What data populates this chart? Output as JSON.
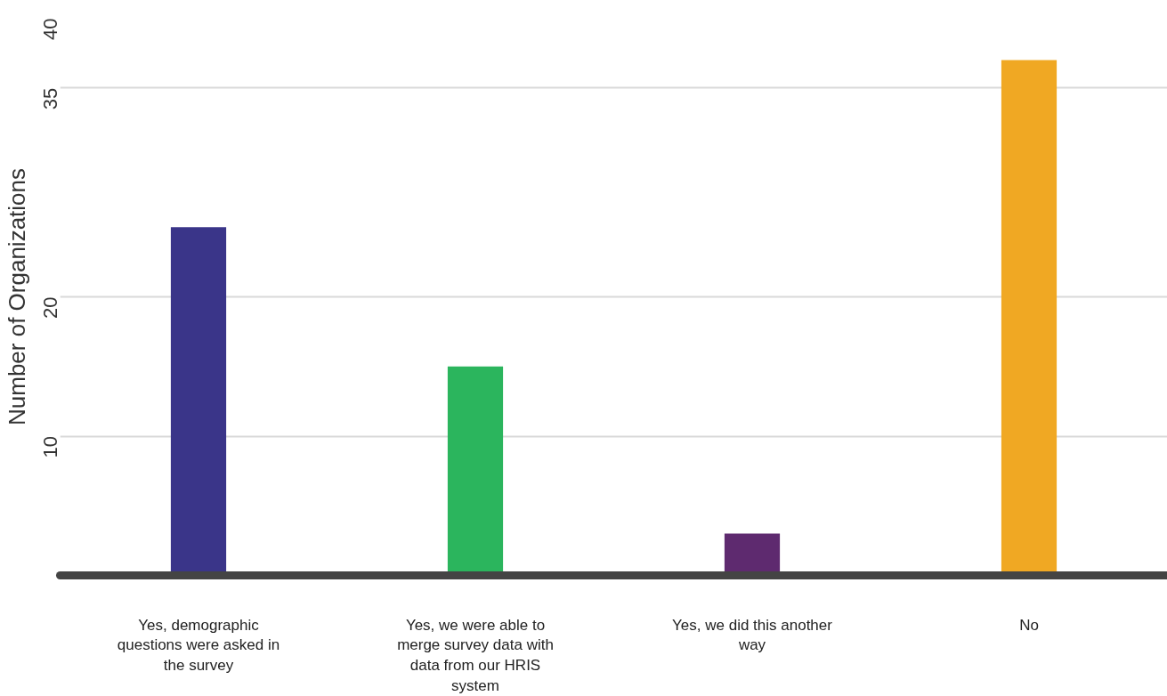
{
  "chart_data": {
    "type": "bar",
    "ylabel": "Number of Organizations",
    "categories": [
      "Yes, demographic questions were asked in the survey",
      "Yes, we were able to merge survey data with data from our HRIS system",
      "Yes, we did this another way",
      "No"
    ],
    "values": [
      25,
      15,
      3,
      37
    ],
    "colors": [
      "#3a3589",
      "#2bb55d",
      "#5e2a6f",
      "#f0a823"
    ],
    "ylim": [
      0,
      40
    ],
    "yticks": [
      10,
      20,
      35,
      40
    ],
    "grid": "y"
  }
}
